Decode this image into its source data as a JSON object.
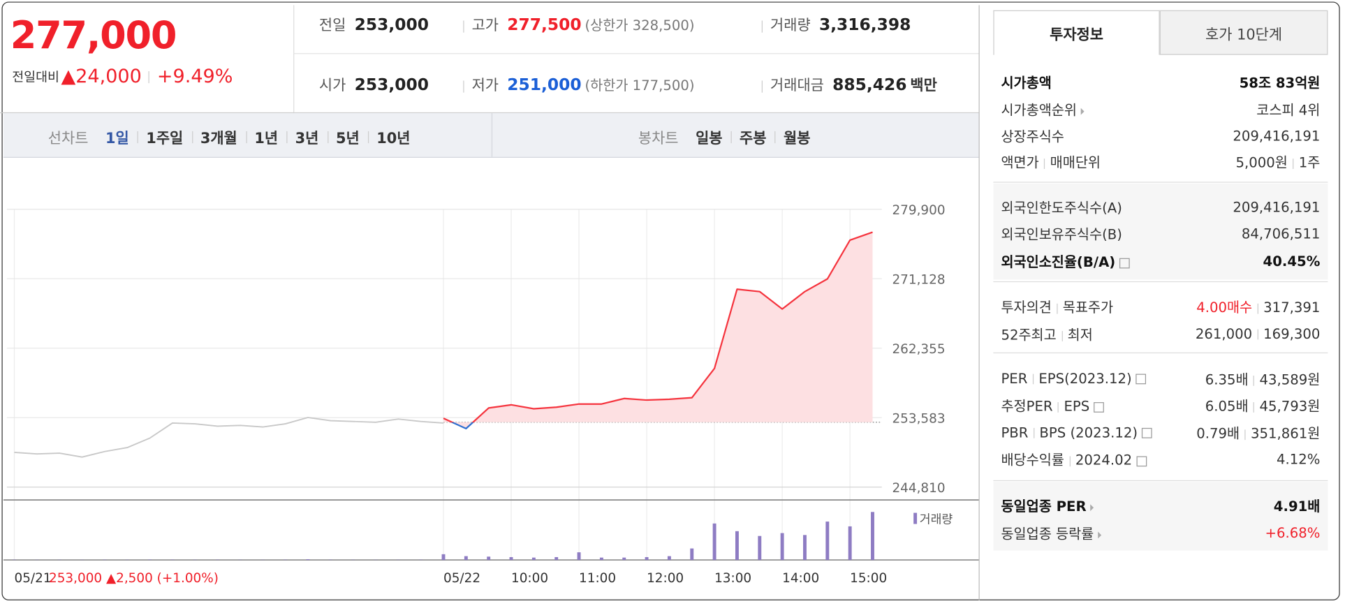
{
  "header": {
    "price": "277,000",
    "change_label": "전일대비",
    "change": "▲24,000",
    "change_pct": "+9.49%",
    "stats": [
      {
        "label": "전일",
        "value": "253,000"
      },
      {
        "label": "고가",
        "value": "277,500",
        "limit": "(상한가 328,500)"
      },
      {
        "label": "거래량",
        "value": "3,316,398"
      },
      {
        "label": "시가",
        "value": "253,000"
      },
      {
        "label": "저가",
        "value": "251,000",
        "limit": "(하한가 177,500)"
      },
      {
        "label": "거래대금",
        "value": "885,426",
        "unit": "백만"
      }
    ]
  },
  "tabs": {
    "line_label": "선차트",
    "line": [
      "1일",
      "1주일",
      "3개월",
      "1년",
      "3년",
      "5년",
      "10년"
    ],
    "candle_label": "봉차트",
    "candle": [
      "일봉",
      "주봉",
      "월봉"
    ]
  },
  "chart_data": {
    "type": "line",
    "categories": [
      "05/21",
      null,
      null,
      null,
      null,
      null,
      null,
      null,
      null,
      null,
      null,
      null,
      null,
      null,
      null,
      null,
      null,
      null,
      null,
      "05/22",
      null,
      null,
      "10:00",
      null,
      null,
      "11:00",
      null,
      null,
      "12:00",
      null,
      null,
      "13:00",
      null,
      null,
      "14:00",
      null,
      null,
      "15:00",
      null
    ],
    "prev_info": "253,000 ▲2,500 (+1.00%)",
    "series": [
      {
        "color": "#c8c8c8",
        "values": [
          249200,
          249000,
          249100,
          248600,
          249300,
          249800,
          251000,
          252900,
          252800,
          252500,
          252600,
          252400,
          252800,
          253600,
          253200,
          253100,
          253000,
          253400,
          253100,
          252900,
          null,
          null,
          null,
          null,
          null,
          null,
          null,
          null,
          null,
          null,
          null,
          null,
          null,
          null,
          null,
          null,
          null,
          null,
          null
        ]
      },
      {
        "color": "#f5333d",
        "color_below": "#2f6fd0",
        "fill": "#fde0e2",
        "values": [
          null,
          null,
          null,
          null,
          null,
          null,
          null,
          null,
          null,
          null,
          null,
          null,
          null,
          null,
          null,
          null,
          null,
          null,
          null,
          253500,
          252200,
          254800,
          255200,
          254700,
          254900,
          255300,
          255300,
          256000,
          255800,
          255900,
          256100,
          259800,
          269800,
          269500,
          267300,
          269500,
          271100,
          276000,
          277000
        ]
      },
      {
        "name": "거래량",
        "type": "bar",
        "color": "#8e7cc3",
        "values": [
          3000,
          2000,
          2500,
          2000,
          3000,
          2500,
          4000,
          3500,
          2500,
          3000,
          2500,
          2000,
          3000,
          8000,
          3000,
          2500,
          2000,
          2500,
          3000,
          60000,
          40000,
          35000,
          30000,
          25000,
          30000,
          80000,
          25000,
          25000,
          30000,
          40000,
          120000,
          380000,
          300000,
          250000,
          280000,
          260000,
          400000,
          350000,
          500000
        ]
      }
    ],
    "baseline": 253000,
    "ylim": [
      244810,
      279900
    ],
    "yticks": [
      {
        "value": 244810,
        "label": "244,810"
      },
      {
        "value": 253583,
        "label": "253,583"
      },
      {
        "value": 262355,
        "label": "262,355"
      },
      {
        "value": 271128,
        "label": "271,128"
      },
      {
        "value": 279900,
        "label": "279,900"
      }
    ],
    "grid": true
  },
  "sidebar": {
    "tabs": [
      "투자정보",
      "호가 10단계"
    ],
    "sections": [
      [
        {
          "label": [
            "시가총액"
          ],
          "value": [
            "58조 83억원"
          ]
        },
        {
          "label": [
            "시가총액순위"
          ],
          "value": [
            "코스피 4위"
          ]
        },
        {
          "label": [
            "상장주식수"
          ],
          "value": [
            "209,416,191"
          ]
        },
        {
          "label": [
            "액면가",
            "매매단위"
          ],
          "value": [
            "5,000원",
            "1주"
          ]
        }
      ],
      [
        {
          "label": [
            "외국인한도주식수(A)"
          ],
          "value": [
            "209,416,191"
          ]
        },
        {
          "label": [
            "외국인보유주식수(B)"
          ],
          "value": [
            "84,706,511"
          ]
        },
        {
          "label": [
            "외국인소진율(B/A)"
          ],
          "value": [
            "40.45%"
          ]
        }
      ],
      [
        {
          "label": [
            "투자의견",
            "목표주가"
          ],
          "value": [
            "4.00매수",
            "317,391"
          ]
        },
        {
          "label": [
            "52주최고",
            "최저"
          ],
          "value": [
            "261,000",
            "169,300"
          ]
        }
      ],
      [
        {
          "label": [
            "PER",
            "EPS(2023.12)"
          ],
          "value": [
            "6.35배",
            "43,589원"
          ]
        },
        {
          "label": [
            "추정PER",
            "EPS"
          ],
          "value": [
            "6.05배",
            "45,793원"
          ]
        },
        {
          "label": [
            "PBR",
            "BPS (2023.12)"
          ],
          "value": [
            "0.79배",
            "351,861원"
          ]
        },
        {
          "label": [
            "배당수익률",
            "2024.02"
          ],
          "value": [
            "4.12%"
          ]
        }
      ],
      [
        {
          "label": [
            "동일업종 PER"
          ],
          "value": [
            "4.91배"
          ]
        },
        {
          "label": [
            "동일업종 등락률"
          ],
          "value": [
            "+6.68%"
          ]
        }
      ]
    ]
  }
}
